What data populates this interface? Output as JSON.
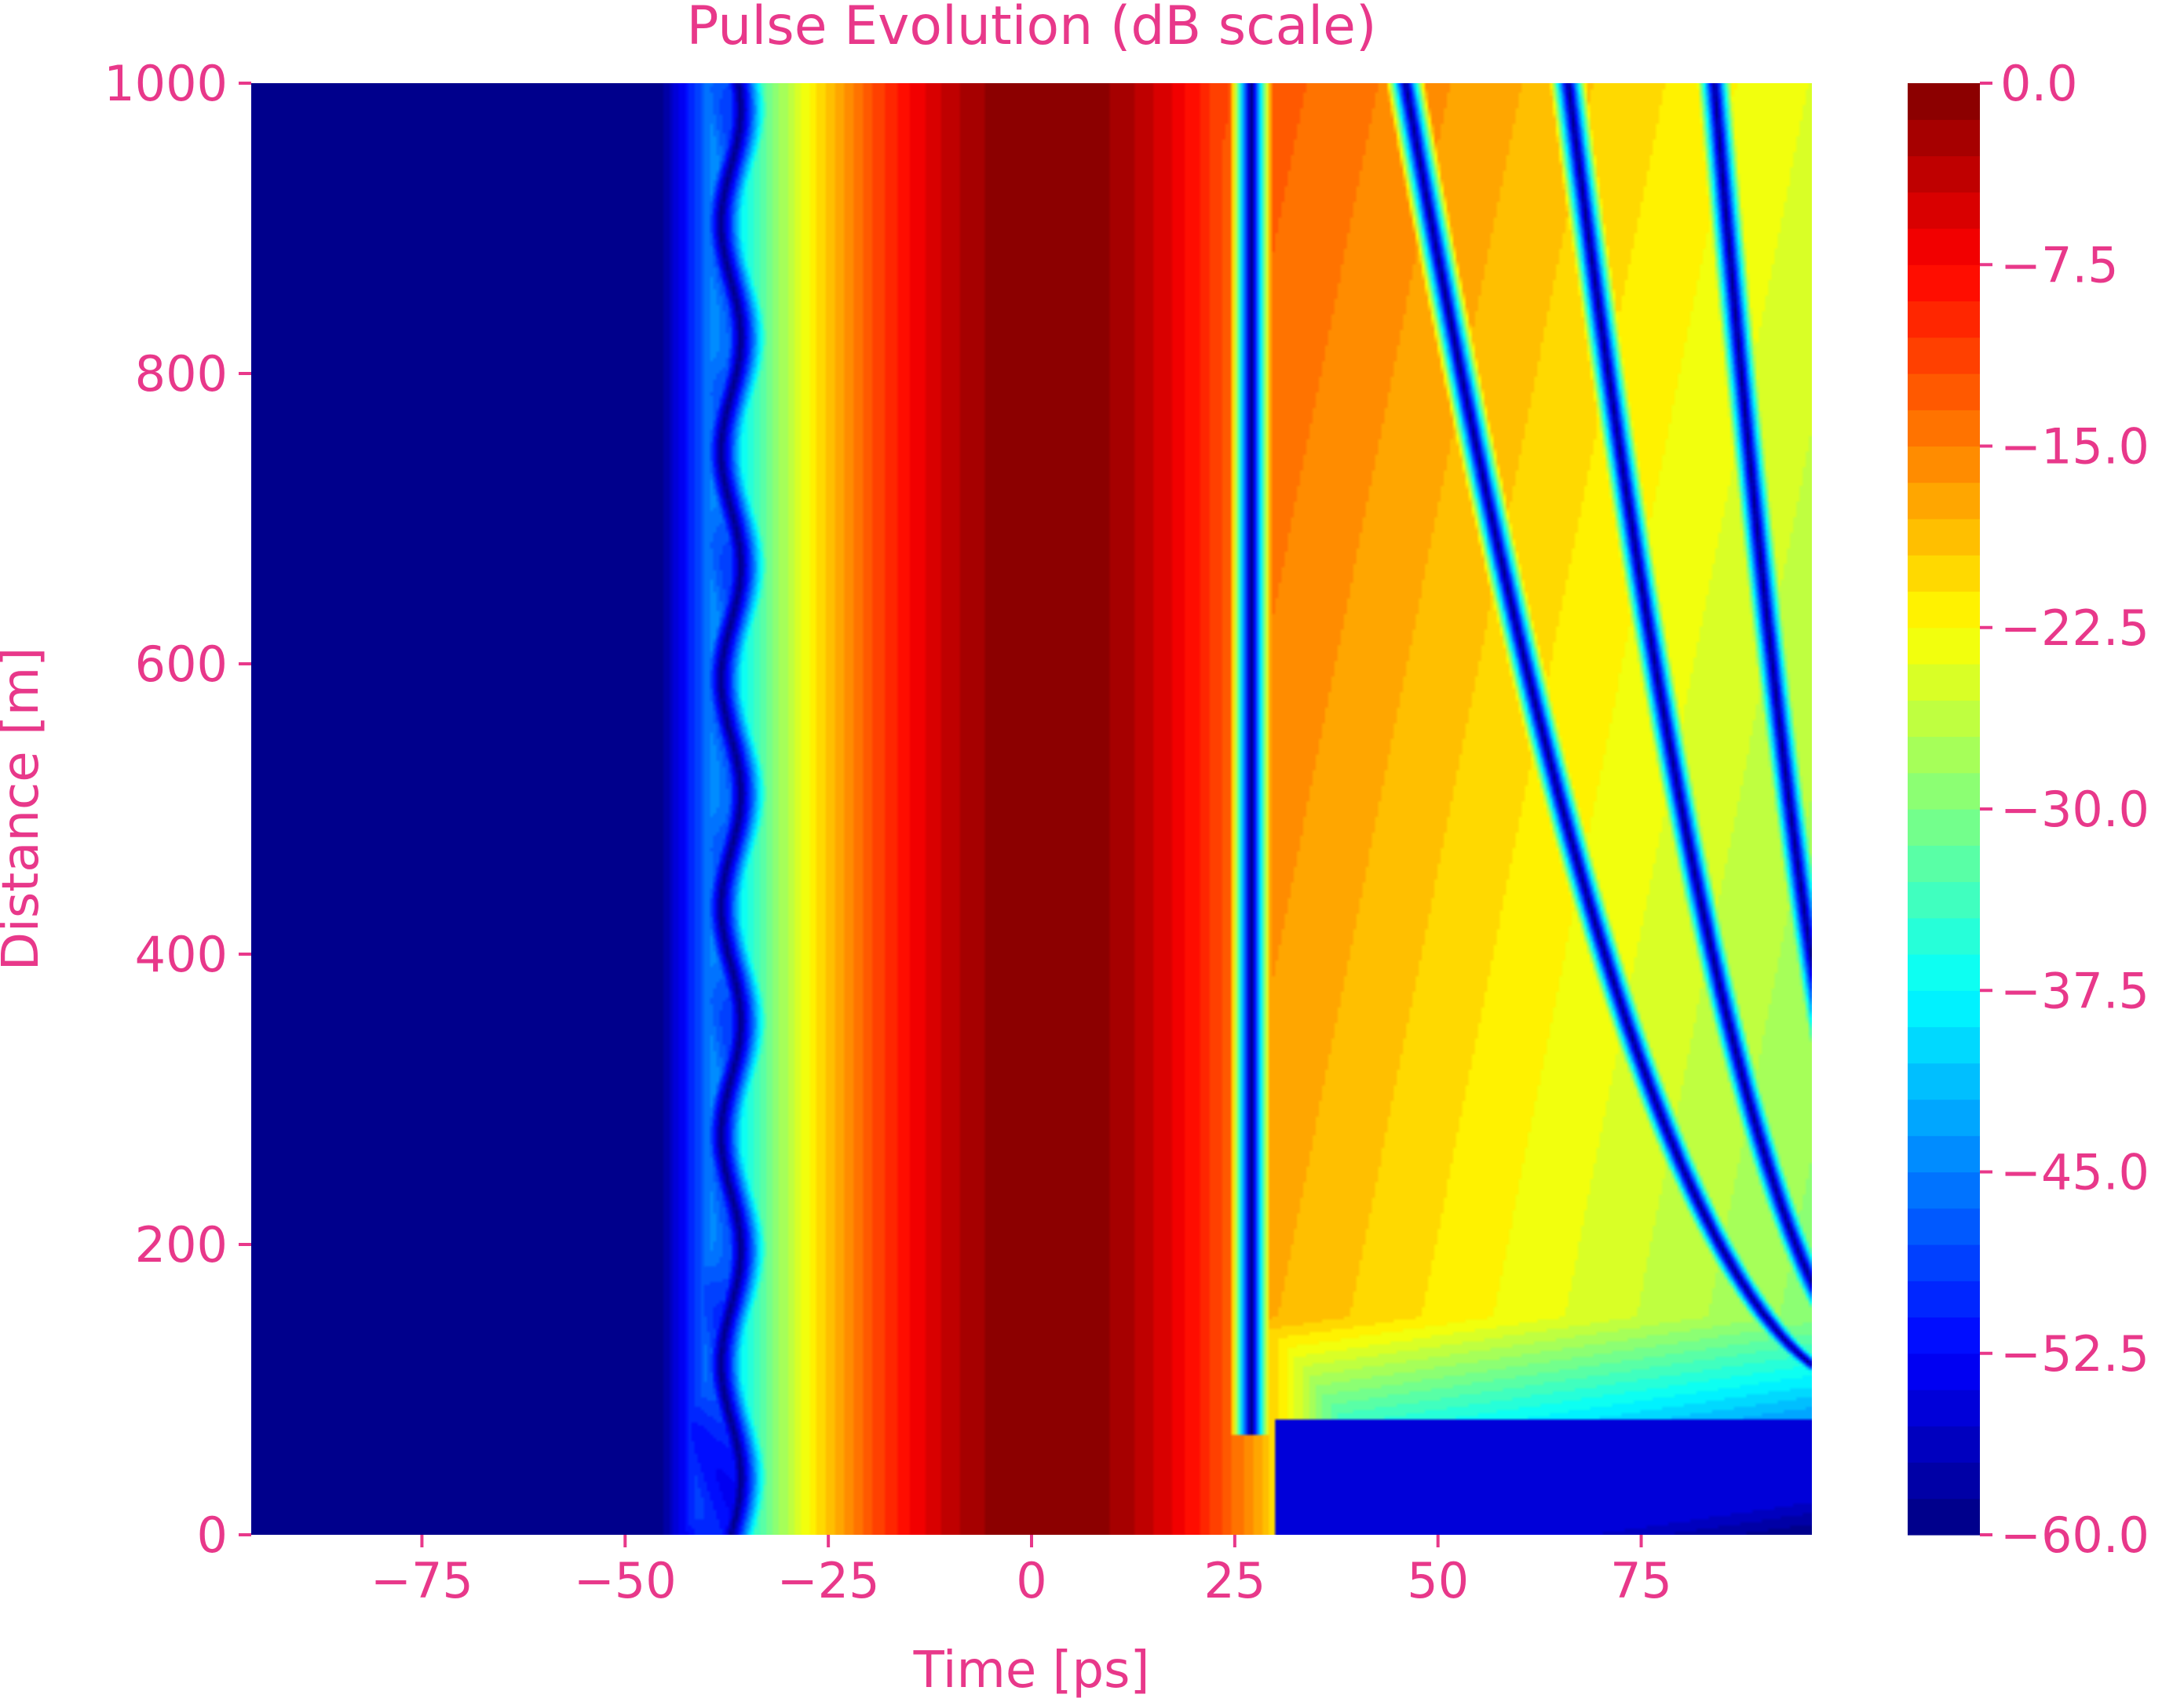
{
  "chart_data": {
    "type": "heatmap",
    "title": "Pulse Evolution (dB scale)",
    "xlabel": "Time [ps]",
    "ylabel": "Distance [m]",
    "xlim": [
      -96,
      96
    ],
    "ylim": [
      0,
      1000
    ],
    "x_ticks": [
      -75,
      -50,
      -25,
      0,
      25,
      50,
      75
    ],
    "x_tick_labels": [
      "−75",
      "−50",
      "−25",
      "0",
      "25",
      "50",
      "75"
    ],
    "y_ticks": [
      0,
      200,
      400,
      600,
      800,
      1000
    ],
    "y_tick_labels": [
      "0",
      "200",
      "400",
      "600",
      "800",
      "1000"
    ],
    "colorbar": {
      "colormap": "jet",
      "range": [
        -60,
        0
      ],
      "levels": 40,
      "ticks": [
        0,
        -7.5,
        -15,
        -22.5,
        -30,
        -37.5,
        -45,
        -52.5,
        -60
      ],
      "tick_labels": [
        "0.0",
        "−7.5",
        "−15.0",
        "−22.5",
        "−30.0",
        "−37.5",
        "−45.0",
        "−52.5",
        "−60.0"
      ]
    },
    "features": {
      "main_pulse_peak_db": 0,
      "main_pulse_center_ps": 2,
      "leading_edge_null_ps": -37,
      "trailing_nulls_at_1000m_ps": [
        27,
        46,
        66,
        84
      ],
      "trailing_nulls_start_m": [
        68,
        100,
        100,
        100
      ]
    },
    "grid": false,
    "legend": "none"
  },
  "colors": {
    "text_accent": "#e8388a",
    "background": "#ffffff"
  }
}
